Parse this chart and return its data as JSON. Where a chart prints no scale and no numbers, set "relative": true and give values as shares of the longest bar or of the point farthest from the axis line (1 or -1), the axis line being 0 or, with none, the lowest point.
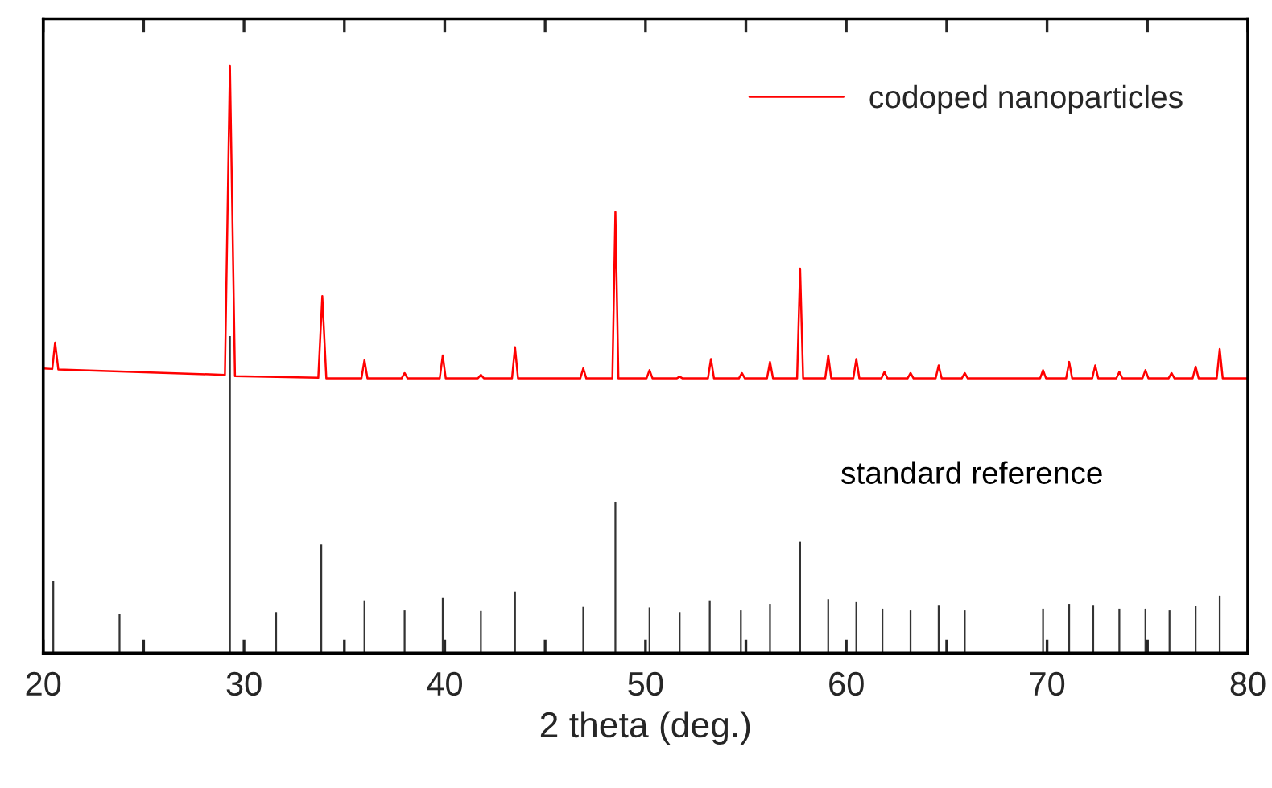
{
  "chart_data": {
    "type": "line",
    "relative": true,
    "xlabel": "2 theta (deg.)",
    "xlim": [
      20,
      80
    ],
    "xticks": [
      20,
      {
        "value": 25,
        "label": null
      },
      30,
      {
        "value": 35,
        "label": null
      },
      40,
      {
        "value": 45,
        "label": null
      },
      50,
      {
        "value": 55,
        "label": null
      },
      60,
      {
        "value": 65,
        "label": null
      },
      70,
      {
        "value": 75,
        "label": null
      },
      80
    ],
    "tick_labels": "x",
    "grid": false,
    "legend": "top right",
    "marker": "none",
    "line_style": "solid",
    "series": [
      {
        "name": "codoped nanoparticles",
        "color": "#ff0000",
        "x": [
          20.0,
          20.45,
          20.59,
          20.75,
          29.05,
          29.3,
          29.55,
          33.7,
          33.9,
          34.1,
          35.85,
          36.0,
          36.15,
          37.85,
          38.0,
          38.15,
          39.75,
          39.9,
          40.05,
          41.65,
          41.8,
          41.95,
          43.35,
          43.5,
          43.65,
          46.75,
          46.9,
          47.05,
          48.35,
          48.5,
          48.65,
          50.05,
          50.2,
          50.35,
          51.55,
          51.7,
          51.85,
          53.11,
          53.26,
          53.41,
          54.65,
          54.8,
          54.95,
          56.05,
          56.2,
          56.35,
          57.55,
          57.7,
          57.85,
          58.95,
          59.1,
          59.25,
          60.35,
          60.5,
          60.65,
          61.75,
          61.9,
          62.05,
          63.05,
          63.2,
          63.35,
          64.45,
          64.6,
          64.75,
          65.75,
          65.9,
          66.05,
          69.65,
          69.8,
          69.95,
          70.95,
          71.1,
          71.25,
          72.25,
          72.4,
          72.55,
          73.45,
          73.6,
          73.75,
          74.75,
          74.9,
          75.05,
          76.05,
          76.2,
          76.35,
          77.25,
          77.4,
          77.55,
          78.45,
          78.6,
          78.75,
          80.0
        ],
        "values": [
          0.485,
          0.484,
          0.529,
          0.483,
          0.474,
          1.0,
          0.472,
          0.469,
          0.608,
          0.468,
          0.468,
          0.499,
          0.468,
          0.468,
          0.477,
          0.468,
          0.468,
          0.507,
          0.468,
          0.468,
          0.474,
          0.468,
          0.468,
          0.521,
          0.468,
          0.468,
          0.485,
          0.468,
          0.468,
          0.751,
          0.468,
          0.468,
          0.482,
          0.468,
          0.468,
          0.471,
          0.468,
          0.468,
          0.501,
          0.468,
          0.468,
          0.477,
          0.468,
          0.468,
          0.496,
          0.468,
          0.468,
          0.655,
          0.468,
          0.468,
          0.507,
          0.468,
          0.468,
          0.501,
          0.468,
          0.468,
          0.479,
          0.468,
          0.468,
          0.477,
          0.468,
          0.468,
          0.49,
          0.468,
          0.468,
          0.477,
          0.468,
          0.468,
          0.482,
          0.468,
          0.468,
          0.496,
          0.468,
          0.468,
          0.49,
          0.468,
          0.468,
          0.479,
          0.468,
          0.468,
          0.482,
          0.468,
          0.468,
          0.477,
          0.468,
          0.468,
          0.488,
          0.468,
          0.468,
          0.518,
          0.468,
          0.468
        ]
      },
      {
        "name": "standard reference",
        "type": "bar",
        "color": "#333333",
        "x": [
          20.5,
          23.8,
          29.3,
          31.6,
          33.85,
          36.0,
          38.0,
          39.9,
          41.8,
          43.5,
          46.9,
          48.5,
          50.2,
          51.7,
          53.2,
          54.75,
          56.2,
          57.7,
          59.1,
          60.5,
          61.8,
          63.2,
          64.6,
          65.9,
          69.8,
          71.1,
          72.3,
          73.6,
          74.9,
          76.1,
          77.4,
          78.6
        ],
        "values": [
          0.123,
          0.067,
          0.54,
          0.07,
          0.185,
          0.09,
          0.073,
          0.094,
          0.072,
          0.105,
          0.079,
          0.258,
          0.078,
          0.07,
          0.09,
          0.073,
          0.084,
          0.19,
          0.092,
          0.087,
          0.076,
          0.073,
          0.081,
          0.073,
          0.076,
          0.084,
          0.081,
          0.076,
          0.076,
          0.073,
          0.08,
          0.098
        ]
      }
    ]
  }
}
